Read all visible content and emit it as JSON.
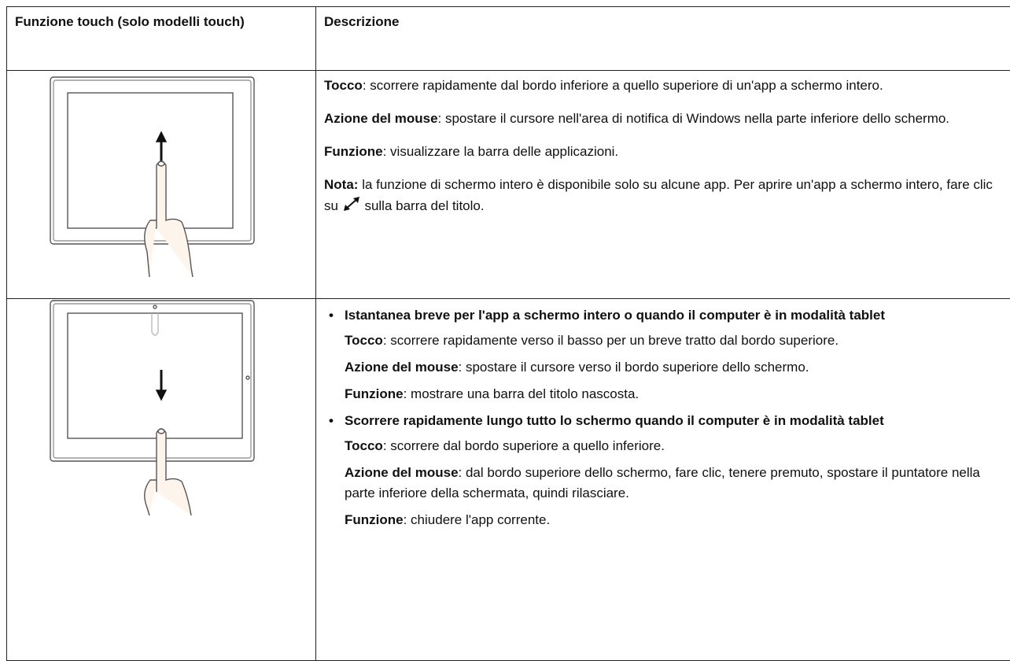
{
  "table": {
    "header": [
      "Funzione touch (solo modelli touch)",
      "Descrizione"
    ],
    "rows": [
      {
        "paragraphs": [
          {
            "label": "Tocco",
            "text": ": scorrere rapidamente dal bordo inferiore a quello superiore di un'app a schermo intero."
          },
          {
            "label": "Azione del mouse",
            "text": ": spostare il cursore nell'area di notifica di Windows nella parte inferiore dello schermo."
          },
          {
            "label": "Funzione",
            "text": ": visualizzare la barra delle applicazioni."
          },
          {
            "label": "Nota:",
            "text": "la funzione di schermo intero è disponibile solo su alcune app. Per aprire un'app a schermo intero, fare clic su",
            "text_after": "sulla barra del titolo."
          }
        ]
      },
      {
        "items": [
          {
            "heading": "Istantanea breve per l'app a schermo intero o quando il computer è in modalità tablet",
            "paragraphs": [
              {
                "label": "Tocco",
                "text": ": scorrere rapidamente verso il basso per un breve tratto dal bordo superiore."
              },
              {
                "label": "Azione del mouse",
                "text": ": spostare il cursore verso il bordo superiore dello schermo."
              },
              {
                "label": "Funzione",
                "text": ": mostrare una barra del titolo nascosta."
              }
            ]
          },
          {
            "heading": "Scorrere rapidamente lungo tutto lo schermo quando il computer è in modalità tablet",
            "paragraphs": [
              {
                "label": "Tocco",
                "text": ": scorrere dal bordo superiore a quello inferiore."
              },
              {
                "label": "Azione del mouse",
                "text": ": dal bordo superiore dello schermo, fare clic, tenere premuto, spostare il puntatore nella parte inferiore della schermata, quindi rilasciare."
              },
              {
                "label": "Funzione",
                "text": ": chiudere l'app corrente."
              }
            ]
          }
        ]
      }
    ]
  }
}
